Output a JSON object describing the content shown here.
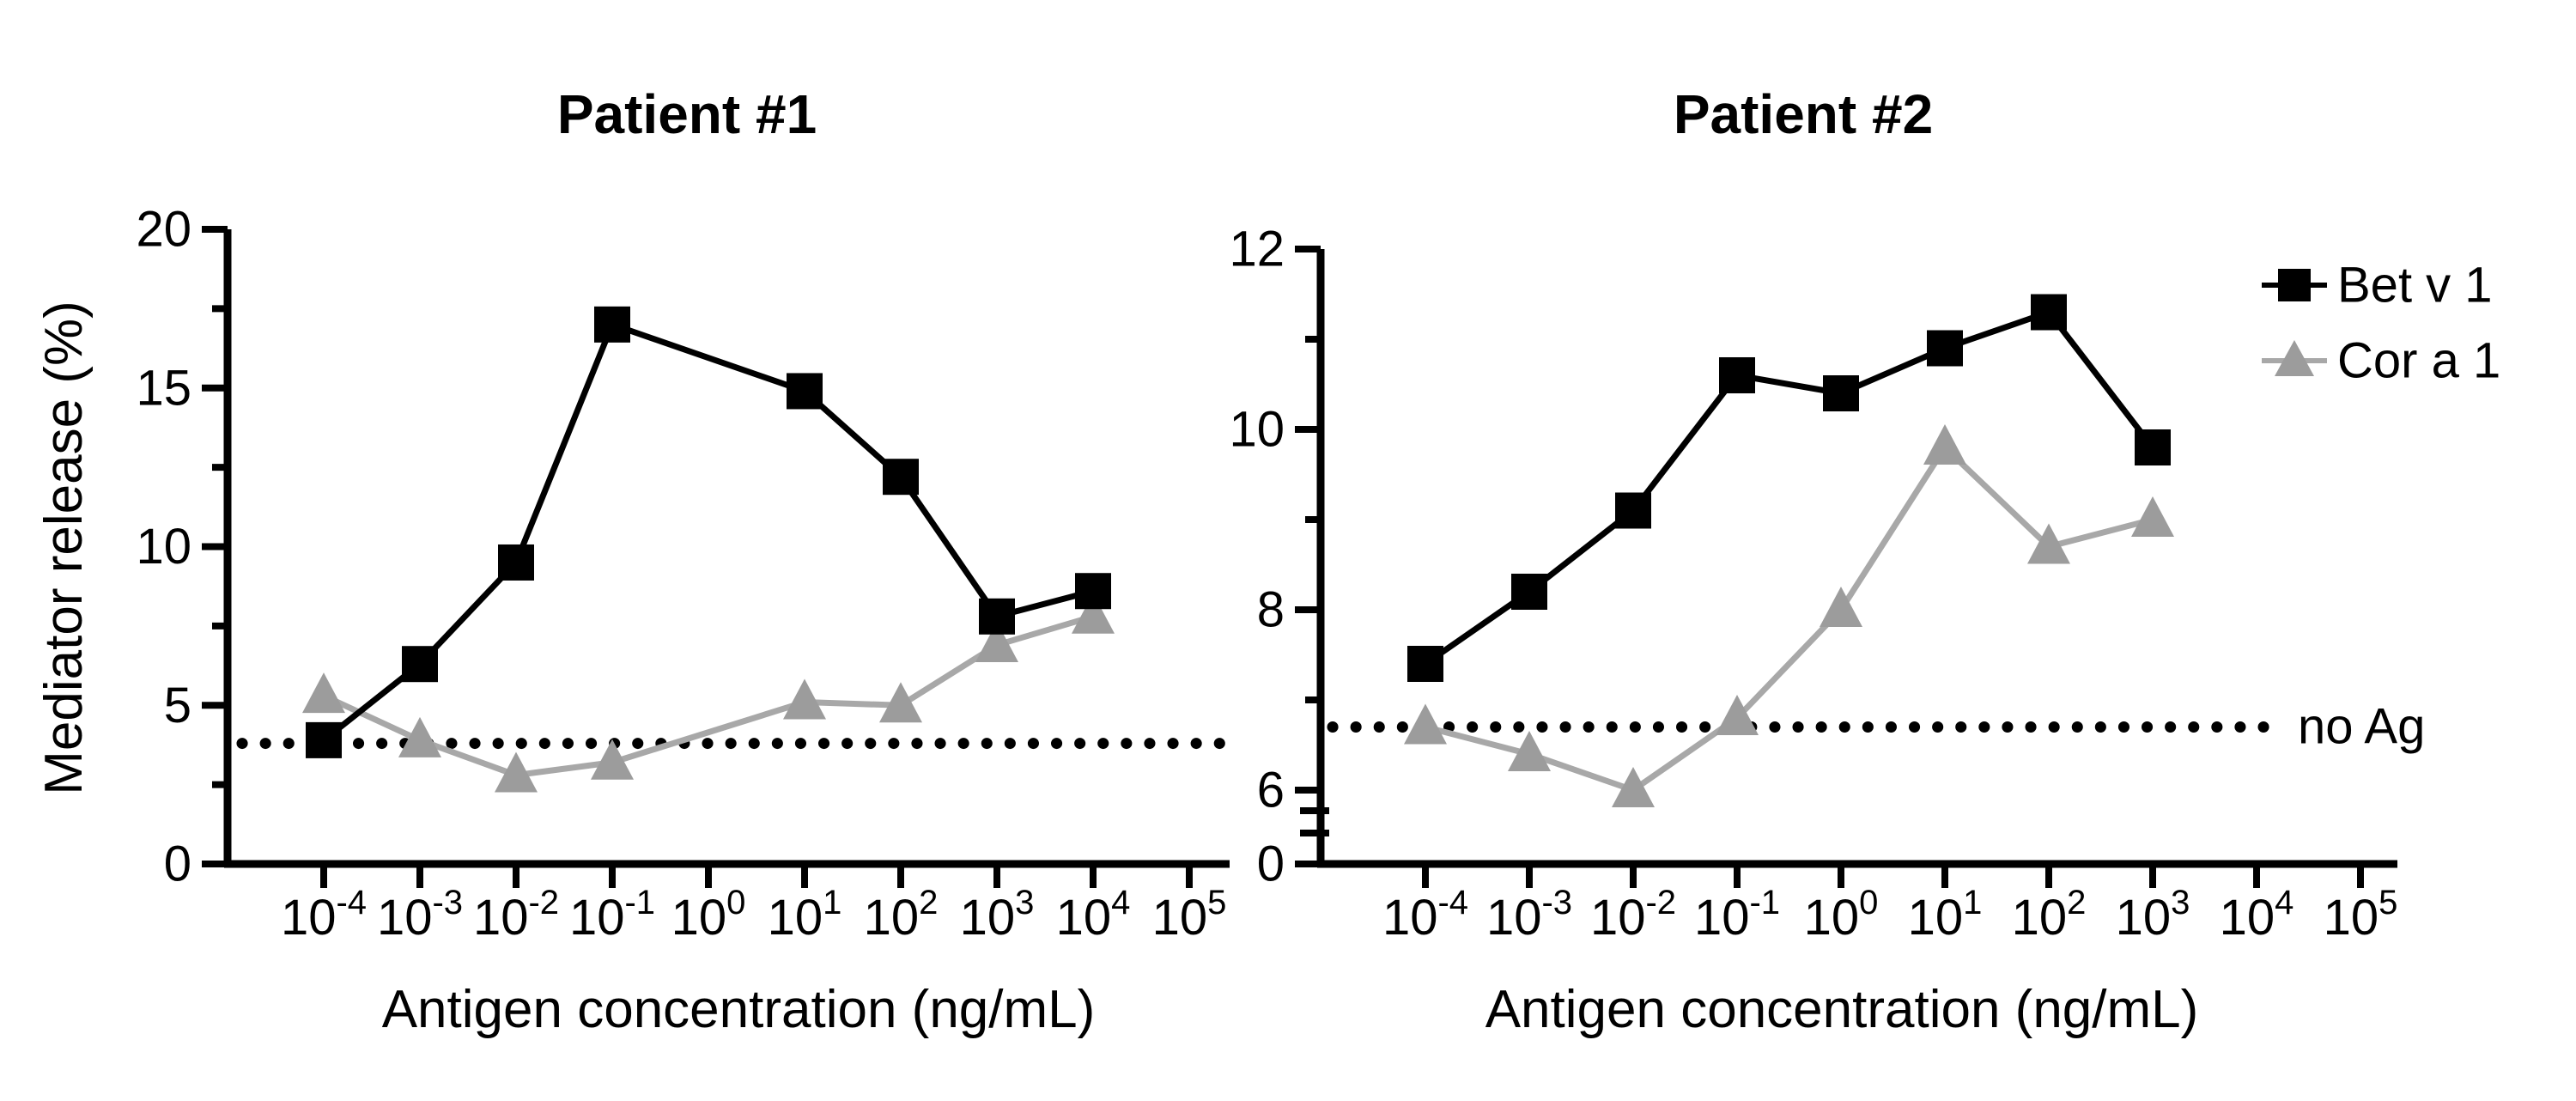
{
  "figure": {
    "background": "#ffffff",
    "y_axis_label": "Mediator release (%)",
    "x_axis_label": "Antigen concentration (ng/mL)",
    "colors": {
      "bet_v_1": "#000000",
      "cor_a_1_line": "#a8a8a8",
      "cor_a_1_marker": "#9c9c9c",
      "axis": "#000000",
      "baseline_dots": "#000000"
    },
    "legend": {
      "position": "top-right",
      "items": [
        {
          "label": "Bet v 1",
          "marker": "square",
          "color": "#000000"
        },
        {
          "label": "Cor a 1",
          "marker": "triangle",
          "color": "#9c9c9c"
        }
      ]
    }
  },
  "chart_data": [
    {
      "type": "line",
      "title": "Patient #1",
      "xlabel": "Antigen concentration (ng/mL)",
      "ylabel": "Mediator release (%)",
      "x_scale": "log10",
      "x_tick_exponents": [
        -4,
        -3,
        -2,
        -1,
        0,
        1,
        2,
        3,
        4,
        5
      ],
      "ylim": [
        0,
        20
      ],
      "y_major_ticks": [
        0,
        5,
        10,
        15,
        20
      ],
      "y_minor_ticks": [
        2.5,
        7.5,
        12.5,
        17.5
      ],
      "grid": false,
      "axis_break": false,
      "series": [
        {
          "name": "Bet v 1",
          "marker": "square",
          "x_exponents": [
            -4,
            -3,
            -2,
            -1,
            1,
            2,
            3,
            4
          ],
          "values": [
            3.9,
            6.3,
            9.5,
            17.0,
            14.9,
            12.2,
            7.8,
            8.6
          ]
        },
        {
          "name": "Cor a 1",
          "marker": "triangle",
          "x_exponents": [
            -4,
            -3,
            -2,
            -1,
            1,
            2,
            3,
            4
          ],
          "values": [
            5.3,
            3.9,
            2.8,
            3.2,
            5.1,
            5.0,
            6.9,
            7.8
          ]
        }
      ],
      "baseline": {
        "value": 3.8,
        "style": "dotted",
        "label": ""
      }
    },
    {
      "type": "line",
      "title": "Patient #2",
      "xlabel": "Antigen concentration (ng/mL)",
      "ylabel": "",
      "x_scale": "log10",
      "x_tick_exponents": [
        -4,
        -3,
        -2,
        -1,
        0,
        1,
        2,
        3,
        4,
        5
      ],
      "ylim": [
        0,
        12
      ],
      "y_major_ticks": [
        0,
        6,
        8,
        10,
        12
      ],
      "y_minor_ticks": [
        7,
        9,
        11
      ],
      "grid": false,
      "axis_break": true,
      "series": [
        {
          "name": "Bet v 1",
          "marker": "square",
          "x_exponents": [
            -4,
            -3,
            -2,
            -1,
            0,
            1,
            2,
            3
          ],
          "values": [
            7.4,
            8.2,
            9.1,
            10.6,
            10.4,
            10.9,
            11.3,
            9.8
          ]
        },
        {
          "name": "Cor a 1",
          "marker": "triangle",
          "x_exponents": [
            -4,
            -3,
            -2,
            -1,
            0,
            1,
            2,
            3
          ],
          "values": [
            6.7,
            6.4,
            6.0,
            6.8,
            8.0,
            9.8,
            8.7,
            9.0
          ]
        }
      ],
      "baseline": {
        "value": 6.7,
        "style": "dotted",
        "label": "no Ag"
      }
    }
  ]
}
